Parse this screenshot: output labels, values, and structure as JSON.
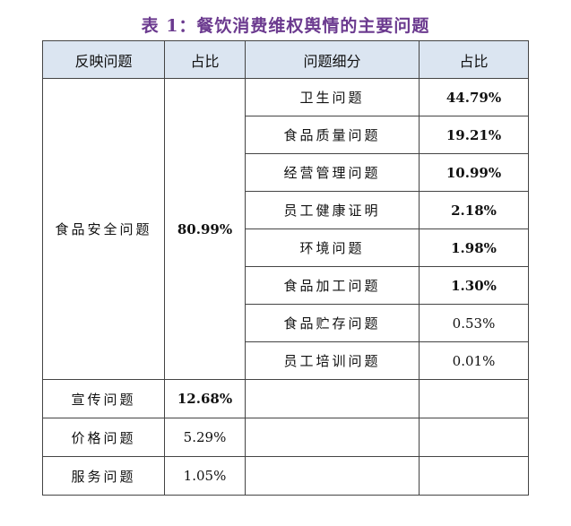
{
  "caption": "表 1：餐饮消费维权舆情的主要问题",
  "headers": {
    "issue": "反映问题",
    "share": "占比",
    "detail": "问题细分",
    "detail_share": "占比"
  },
  "food_safety": {
    "label": "食品安全问题",
    "share": "80.99%",
    "subitems": [
      {
        "label": "卫生问题",
        "share": "44.79%"
      },
      {
        "label": "食品质量问题",
        "share": "19.21%"
      },
      {
        "label": "经营管理问题",
        "share": "10.99%"
      },
      {
        "label": "员工健康证明",
        "share": "2.18%"
      },
      {
        "label": "环境问题",
        "share": "1.98%"
      },
      {
        "label": "食品加工问题",
        "share": "1.30%"
      },
      {
        "label": "食品贮存问题",
        "share": "0.53%"
      },
      {
        "label": "员工培训问题",
        "share": "0.01%"
      }
    ]
  },
  "other_rows": [
    {
      "label": "宣传问题",
      "share": "12.68%"
    },
    {
      "label": "价格问题",
      "share": "5.29%"
    },
    {
      "label": "服务问题",
      "share": "1.05%"
    }
  ]
}
